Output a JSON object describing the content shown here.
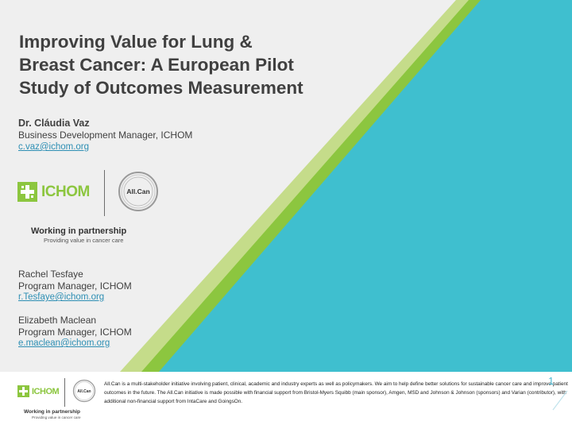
{
  "slide": {
    "title_lines": [
      "Improving Value for Lung &",
      "Breast Cancer: A European Pilot",
      "Study of Outcomes Measurement"
    ],
    "presenter": {
      "name": "Dr. Cláudia Vaz",
      "role": "Business Development Manager, ICHOM",
      "email": "c.vaz@ichom.org"
    },
    "contacts": [
      {
        "name": "Rachel Tesfaye",
        "role": "Program Manager, ICHOM",
        "email": "r.Tesfaye@ichom.org"
      },
      {
        "name": "Elizabeth Maclean",
        "role": "Program Manager, ICHOM",
        "email": "e.maclean@ichom.org"
      }
    ],
    "logos": {
      "ichom": "ICHOM",
      "allcan": "All.Can",
      "partnership": "Working in partnership",
      "partnership_sub": "Providing value in cancer care"
    }
  },
  "footer": {
    "text": "All.Can is a multi-stakeholder initiative involving patient, clinical, academic and industry experts as well as policymakers. We aim to help define better solutions for sustainable cancer care and improve patient outcomes in the future. The All.Can initiative is made possible with financial support from Bristol-Myers Squibb (main sponsor), Amgen, MSD and Johnson & Johnson (sponsors) and Varian (contributor), with additional non-financial support from IntaCare and GoingsOn.",
    "page_number": "1",
    "logos": {
      "ichom": "ICHOM",
      "allcan": "All.Can",
      "partnership": "Working in partnership",
      "partnership_sub": "Providing value in cancer care"
    }
  },
  "colors": {
    "teal": "#3fbfcf",
    "green": "#8cc63f",
    "light_green": "#c5dc8a",
    "gray_bg": "#efefef",
    "title_text": "#404040",
    "link": "#2e8fb4"
  },
  "icons": [
    "ichom-cross-icon",
    "allcan-circle-logo"
  ]
}
